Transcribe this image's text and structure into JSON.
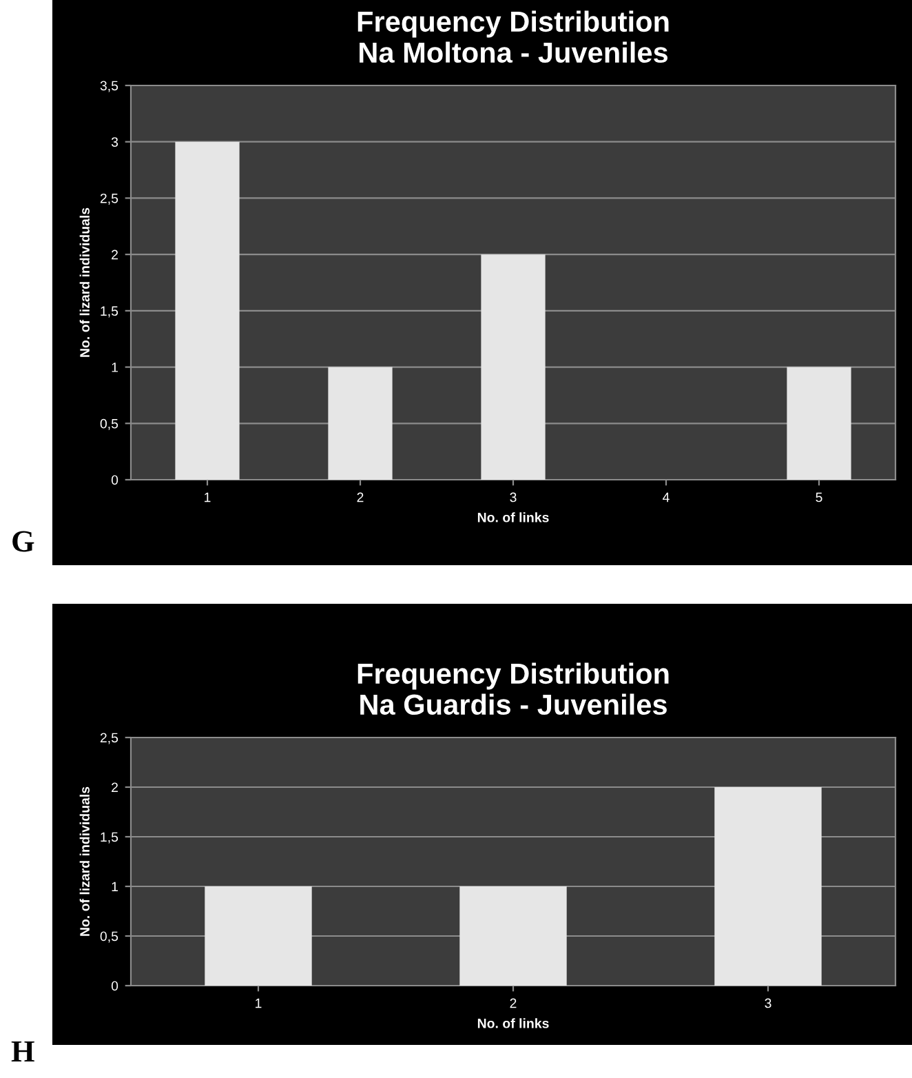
{
  "chart_data": [
    {
      "type": "bar",
      "title": "Frequency Distribution\nNa Moltona - Juveniles",
      "xlabel": "No. of links",
      "ylabel": "No. of lizard individuals",
      "annotations": [
        "G"
      ],
      "categories": [
        "1",
        "2",
        "3",
        "4",
        "5"
      ],
      "values": [
        3,
        1,
        2,
        0,
        1
      ],
      "color": "#e6e6e6",
      "ylim": [
        0,
        3.5
      ],
      "yticks": [
        0,
        {
          "value": 0.5,
          "label": "0,5"
        },
        1,
        {
          "value": 1.5,
          "label": "1,5"
        },
        2,
        {
          "value": 2.5,
          "label": "2,5"
        },
        3,
        {
          "value": 3.5,
          "label": "3,5"
        }
      ],
      "grid": "y",
      "legend": false
    },
    {
      "type": "bar",
      "title": "Frequency Distribution\nNa Guardis - Juveniles",
      "xlabel": "No. of links",
      "ylabel": "No. of lizard individuals",
      "annotations": [
        "H"
      ],
      "categories": [
        "1",
        "2",
        "3"
      ],
      "values": [
        1,
        1,
        2
      ],
      "color": "#e6e6e6",
      "ylim": [
        0,
        2.5
      ],
      "yticks": [
        0,
        {
          "value": 0.5,
          "label": "0,5"
        },
        1,
        {
          "value": 1.5,
          "label": "1,5"
        },
        2,
        {
          "value": 2.5,
          "label": "2,5"
        }
      ],
      "grid": "y",
      "legend": false
    }
  ]
}
